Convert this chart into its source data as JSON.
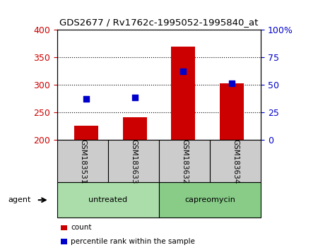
{
  "title": "GDS2677 / Rv1762c-1995052-1995840_at",
  "samples": [
    "GSM183531",
    "GSM183633",
    "GSM183632",
    "GSM183634"
  ],
  "counts": [
    226,
    242,
    370,
    303
  ],
  "percentiles": [
    37.5,
    38.5,
    62.5,
    51.5
  ],
  "ylim_left": [
    200,
    400
  ],
  "ylim_right": [
    0,
    100
  ],
  "yticks_left": [
    200,
    250,
    300,
    350,
    400
  ],
  "yticks_right": [
    0,
    25,
    50,
    75,
    100
  ],
  "bar_color": "#cc0000",
  "dot_color": "#0000cc",
  "bar_bottom": 200,
  "groups": [
    {
      "label": "untreated",
      "indices": [
        0,
        1
      ],
      "color": "#aaddaa"
    },
    {
      "label": "capreomycin",
      "indices": [
        2,
        3
      ],
      "color": "#88cc88"
    }
  ],
  "group_row_label": "agent",
  "legend_items": [
    {
      "color": "#cc0000",
      "label": "count"
    },
    {
      "color": "#0000cc",
      "label": "percentile rank within the sample"
    }
  ],
  "left_axis_color": "#cc0000",
  "right_axis_color": "#0000cc",
  "sample_box_color": "#cccccc",
  "background_color": "#ffffff"
}
